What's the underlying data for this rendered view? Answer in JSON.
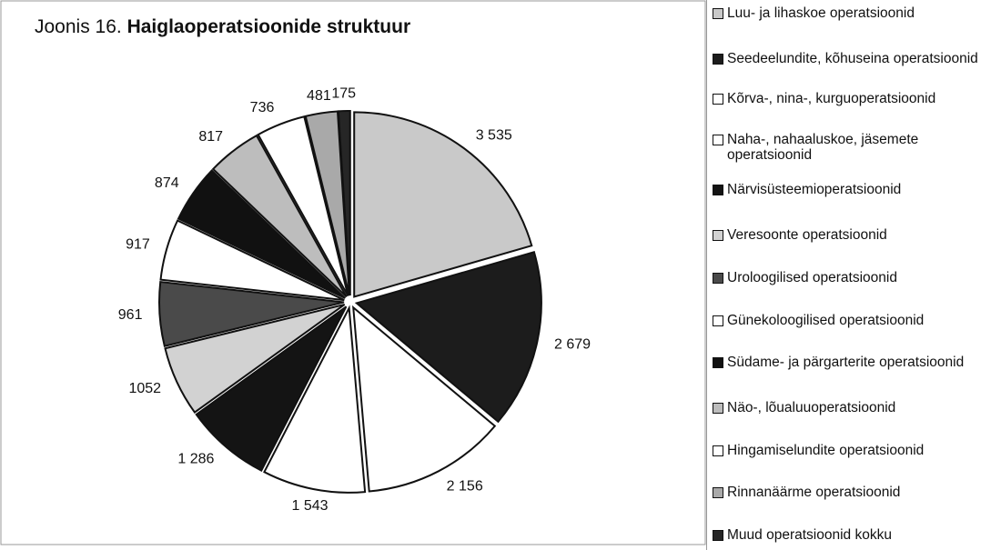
{
  "chart_data": {
    "type": "pie",
    "title_parts": [
      "Joonis 16.",
      "Haiglaoperatsioonide struktuur"
    ],
    "categories": [
      "Luu- ja lihaskoe operatsioonid",
      "Seedeelundite, kõhuseina operatsioonid",
      "Kõrva-, nina-, kurguoperatsioonid",
      "Naha-, nahaaluskoe, jäsemete operatsioonid",
      "Närvisüsteemioperatsioonid",
      "Veresoonte operatsioonid",
      "Uroloogilised operatsioonid",
      "Günekoloogilised operatsioonid",
      "Südame- ja pärgarterite operatsioonid",
      "Näo-, lõualuuoperatsioonid",
      "Hingamiselundite operatsioonid",
      "Rinnanäärme operatsioonid",
      "Muud operatsioonid kokku"
    ],
    "values": [
      3535,
      2679,
      2156,
      1543,
      1286,
      1052,
      961,
      917,
      874,
      817,
      736,
      481,
      175
    ],
    "value_labels": [
      "3 535",
      "2 679",
      "2 156",
      "1 543",
      "1 286",
      "1052",
      "961",
      "917",
      "874",
      "817",
      "736",
      "481",
      "175"
    ],
    "colors": [
      "#c9c9c9",
      "#1c1c1c",
      "#ffffff",
      "#ffffff",
      "#141414",
      "#d2d2d2",
      "#4a4a4a",
      "#ffffff",
      "#111111",
      "#bdbdbd",
      "#ffffff",
      "#a9a9a9",
      "#262626"
    ],
    "start_angle": 0,
    "direction": "clockwise",
    "legend": "right"
  }
}
